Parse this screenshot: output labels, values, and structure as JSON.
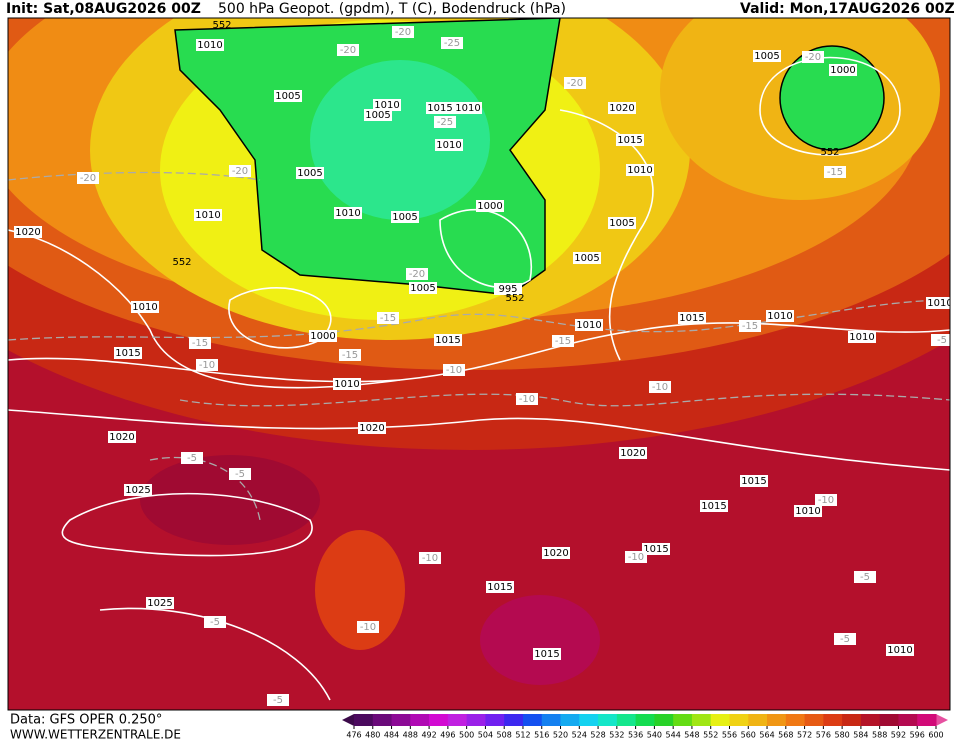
{
  "header": {
    "init": "Init: Sat,08AUG2026 00Z",
    "title": "500 hPa Geopot. (gpdm), T (C), Bodendruck (hPa)",
    "valid": "Valid: Mon,17AUG2026 00Z"
  },
  "footer": {
    "data_source": "Data: GFS OPER 0.250°",
    "website": "WWW.WETTERZENTRALE.DE"
  },
  "map": {
    "isobar_labels": [
      1010,
      1005,
      1010,
      1005,
      1015,
      1010,
      1010,
      1005,
      1010,
      1005,
      1000,
      1010,
      1020,
      1010,
      1005,
      995,
      1000,
      1015,
      1015,
      1010,
      1020,
      1020,
      1025,
      1025,
      1005,
      1000,
      1020,
      1015,
      1010,
      1005,
      1005,
      1010,
      1015,
      1010,
      1010,
      1010,
      1020,
      1015,
      1015,
      1010,
      1015,
      1020,
      1015,
      1015,
      1010
    ],
    "temperature_labels": [
      -20,
      -20,
      -25,
      -20,
      -20,
      -20,
      -25,
      -20,
      -15,
      -20,
      -15,
      -15,
      -15,
      -10,
      -15,
      -15,
      -10,
      -10,
      -10,
      -5,
      -5,
      -10,
      -10,
      -10,
      -5,
      -10,
      -5,
      -5,
      -5,
      -5
    ],
    "geopotential_labels": [
      552,
      552,
      552,
      552
    ]
  },
  "colorbar": {
    "ticks": [
      476,
      480,
      484,
      488,
      492,
      496,
      500,
      504,
      508,
      512,
      516,
      520,
      524,
      528,
      532,
      536,
      540,
      544,
      548,
      552,
      556,
      560,
      564,
      568,
      572,
      576,
      580,
      584,
      588,
      592,
      596,
      600
    ],
    "colors": [
      "#4b0a5e",
      "#6a0a7a",
      "#8c0a96",
      "#b00ab4",
      "#d20ad2",
      "#c020e0",
      "#9a20e8",
      "#7020f0",
      "#3c28f0",
      "#1450f0",
      "#1480f0",
      "#14aaf0",
      "#14d2f0",
      "#14e6c8",
      "#14e68c",
      "#14dc50",
      "#28d228",
      "#64dc14",
      "#a0e614",
      "#e6f014",
      "#f0d214",
      "#f0b414",
      "#f09614",
      "#f07814",
      "#e65a14",
      "#dc3c14",
      "#c82814",
      "#b41428",
      "#a00a32",
      "#b40a50",
      "#d20a78"
    ]
  }
}
